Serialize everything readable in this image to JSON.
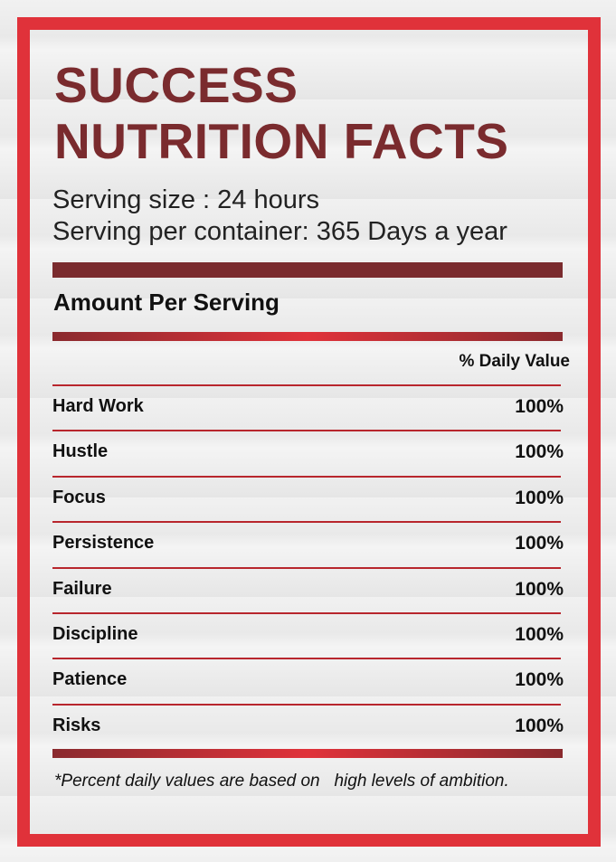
{
  "header": {
    "title_lines": [
      "SUCCESS",
      "NUTRITION FACTS"
    ],
    "serving_size": "Serving size : 24 hours",
    "servings_per_container": "Serving per container: 365 Days a year"
  },
  "section": {
    "title": "Amount Per Serving",
    "column_header": "% Daily Value"
  },
  "table": {
    "rows": [
      [
        "Hard Work",
        "100%"
      ],
      [
        "Hustle",
        "100%"
      ],
      [
        "Focus",
        "100%"
      ],
      [
        "Persistence",
        "100%"
      ],
      [
        "Failure",
        "100%"
      ],
      [
        "Discipline",
        "100%"
      ],
      [
        "Patience",
        "100%"
      ],
      [
        "Risks",
        "100%"
      ]
    ]
  },
  "footnote": "*Percent daily values are based on   high levels of ambition."
}
